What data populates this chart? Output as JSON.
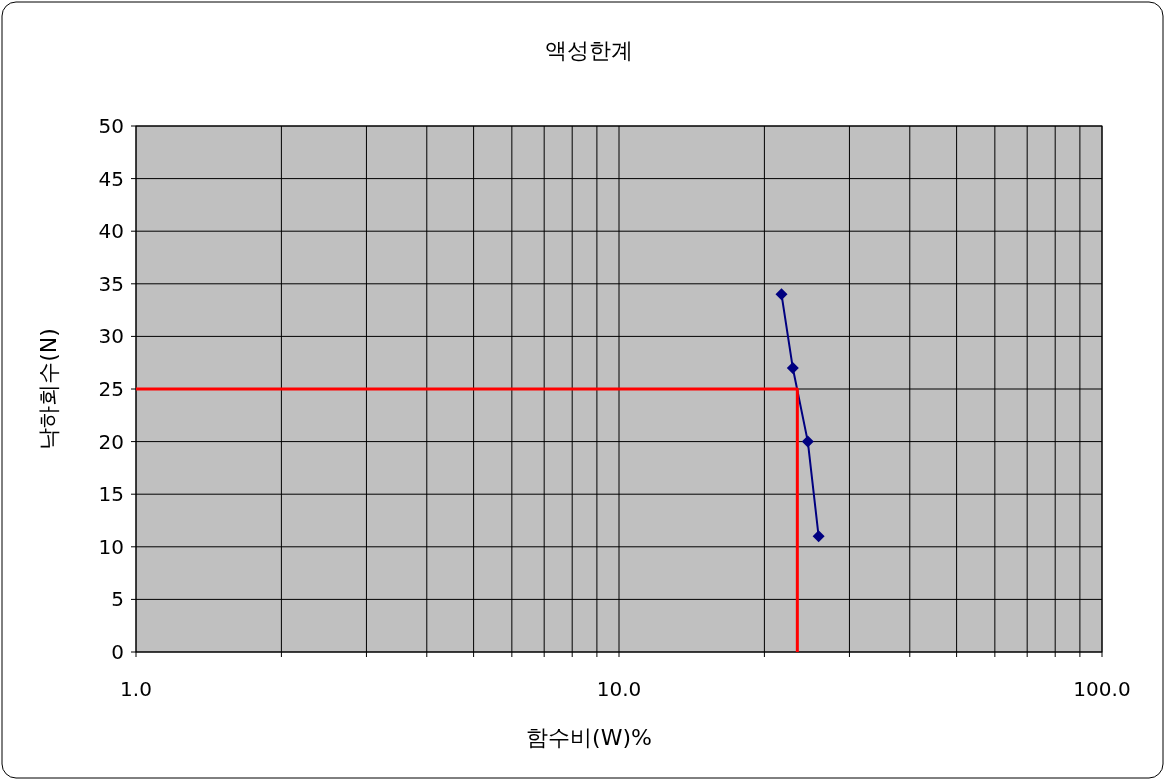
{
  "chart_data": {
    "type": "line",
    "title": "액성한계",
    "xlabel": "함수비(W)%",
    "ylabel": "낙하회수(N)",
    "log": "x",
    "grid": true,
    "xlim": [
      1,
      100
    ],
    "ylim": [
      0,
      50
    ],
    "xticks": [
      {
        "value": 1,
        "label": "1.0"
      },
      {
        "value": 2,
        "label": null
      },
      {
        "value": 3,
        "label": null
      },
      {
        "value": 4,
        "label": null
      },
      {
        "value": 5,
        "label": null
      },
      {
        "value": 6,
        "label": null
      },
      {
        "value": 7,
        "label": null
      },
      {
        "value": 8,
        "label": null
      },
      {
        "value": 9,
        "label": null
      },
      {
        "value": 10,
        "label": "10.0"
      },
      {
        "value": 20,
        "label": null
      },
      {
        "value": 30,
        "label": null
      },
      {
        "value": 40,
        "label": null
      },
      {
        "value": 50,
        "label": null
      },
      {
        "value": 60,
        "label": null
      },
      {
        "value": 70,
        "label": null
      },
      {
        "value": 80,
        "label": null
      },
      {
        "value": 90,
        "label": null
      },
      {
        "value": 100,
        "label": "100.0"
      }
    ],
    "yticks": [
      0,
      5,
      10,
      15,
      20,
      25,
      30,
      35,
      40,
      45,
      50
    ],
    "series": [
      {
        "color": "#000080",
        "marker": "diamond",
        "x": [
          21.7,
          22.9,
          24.6,
          25.9
        ],
        "values": [
          34,
          27,
          20,
          11
        ]
      },
      {
        "color": "#ff0000",
        "marker": "none",
        "x": [
          1,
          23.4,
          23.4
        ],
        "values": [
          25,
          25,
          0
        ]
      }
    ]
  }
}
